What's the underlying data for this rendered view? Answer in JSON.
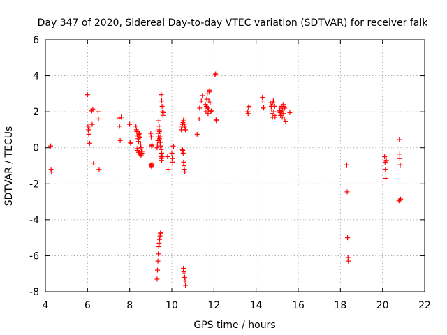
{
  "chart_data": {
    "type": "scatter",
    "title": "Day 347 of 2020, Sidereal Day-to-day VTEC variation (SDTVAR) for receiver falk",
    "xlabel": "GPS time / hours",
    "ylabel": "SDTVAR / TECUs",
    "xlim": [
      4,
      22
    ],
    "ylim": [
      -8,
      6
    ],
    "xticks": [
      "4",
      "6",
      "8",
      "10",
      "12",
      "14",
      "16",
      "18",
      "20",
      "22"
    ],
    "yticks": [
      "-8",
      "-6",
      "-4",
      "-2",
      "0",
      "2",
      "4",
      "6"
    ],
    "grid": true,
    "marker": "plus",
    "color": "#ff0000",
    "series": [
      {
        "name": "SDTVAR",
        "x": [
          4.25,
          4.27,
          4.29,
          6.0,
          6.02,
          6.04,
          6.06,
          6.08,
          6.1,
          6.2,
          6.22,
          6.25,
          6.28,
          6.5,
          6.52,
          6.55,
          7.5,
          7.52,
          7.55,
          7.6,
          8.0,
          8.02,
          8.05,
          8.3,
          8.32,
          8.34,
          8.36,
          8.38,
          8.4,
          8.42,
          8.44,
          8.46,
          8.48,
          8.5,
          8.52,
          8.54,
          8.56,
          8.58,
          8.35,
          8.38,
          8.42,
          8.46,
          8.5,
          8.55,
          8.6,
          9.0,
          9.02,
          9.04,
          9.06,
          9.0,
          9.02,
          9.04,
          9.06,
          9.3,
          9.32,
          9.34,
          9.36,
          9.38,
          9.4,
          9.42,
          9.44,
          9.46,
          9.48,
          9.5,
          9.52,
          9.54,
          9.56,
          9.58,
          9.6,
          9.38,
          9.4,
          9.42,
          9.44,
          9.46,
          9.48,
          9.5,
          9.52,
          9.54,
          9.3,
          9.32,
          9.34,
          9.36,
          9.38,
          9.4,
          9.42,
          9.44,
          9.46,
          9.48,
          9.5,
          9.52,
          9.8,
          9.82,
          10.0,
          10.02,
          10.04,
          10.06,
          10.08,
          10.45,
          10.47,
          10.49,
          10.51,
          10.53,
          10.55,
          10.57,
          10.59,
          10.61,
          10.63,
          10.65,
          10.5,
          10.52,
          10.54,
          10.56,
          10.58,
          10.6,
          10.62,
          10.55,
          10.57,
          10.59,
          10.61,
          10.63,
          10.65,
          11.2,
          11.3,
          11.32,
          11.4,
          11.45,
          11.6,
          11.62,
          11.64,
          11.66,
          11.68,
          11.7,
          11.72,
          11.74,
          11.76,
          11.78,
          11.8,
          11.82,
          11.85,
          11.88,
          12.05,
          12.08,
          12.1,
          12.12,
          13.6,
          13.62,
          13.64,
          13.66,
          14.3,
          14.32,
          14.34,
          14.36,
          14.7,
          14.72,
          14.74,
          14.76,
          14.78,
          14.8,
          14.82,
          14.84,
          14.86,
          14.88,
          14.9,
          15.1,
          15.12,
          15.14,
          15.16,
          15.18,
          15.2,
          15.22,
          15.24,
          15.26,
          15.28,
          15.3,
          15.32,
          15.34,
          15.36,
          15.4,
          15.6,
          18.3,
          18.32,
          18.34,
          18.36,
          18.38,
          20.1,
          20.12,
          20.14,
          20.16,
          20.18,
          20.8,
          20.82,
          20.84,
          20.86,
          20.78,
          20.8,
          20.82
        ],
        "y": [
          0.1,
          -1.2,
          -1.35,
          2.95,
          1.2,
          1.0,
          0.75,
          1.1,
          0.25,
          2.05,
          1.3,
          2.15,
          -0.85,
          2.0,
          1.6,
          -1.2,
          1.65,
          1.2,
          0.4,
          1.7,
          1.3,
          0.3,
          0.25,
          1.2,
          1.0,
          0.9,
          0.7,
          0.6,
          0.5,
          0.35,
          0.75,
          0.8,
          0.55,
          0.6,
          0.2,
          0.0,
          -0.2,
          -0.3,
          -0.05,
          -0.15,
          -0.25,
          -0.35,
          -0.45,
          -0.4,
          -0.2,
          0.8,
          0.6,
          0.1,
          -0.9,
          -0.95,
          -1.0,
          -1.05,
          0.15,
          -7.3,
          -6.8,
          -6.3,
          -5.9,
          -5.5,
          -5.3,
          -5.1,
          -4.9,
          -4.75,
          -4.7,
          2.95,
          2.6,
          2.3,
          2.0,
          1.8,
          1.95,
          1.5,
          1.2,
          0.9,
          0.6,
          0.3,
          0.1,
          -0.1,
          -0.3,
          -0.5,
          0.0,
          0.2,
          0.4,
          0.6,
          0.8,
          1.0,
          0.5,
          0.3,
          0.1,
          -0.5,
          -0.6,
          -0.7,
          -0.5,
          -1.2,
          -0.3,
          -0.6,
          -0.8,
          0.1,
          0.05,
          1.0,
          1.1,
          1.2,
          1.3,
          1.4,
          1.5,
          1.6,
          1.3,
          1.2,
          1.1,
          1.0,
          -0.1,
          -0.15,
          -0.3,
          -0.8,
          -1.0,
          -1.2,
          -1.35,
          -6.7,
          -6.9,
          -7.0,
          -7.2,
          -7.4,
          -7.65,
          0.75,
          1.6,
          2.2,
          2.6,
          2.9,
          2.4,
          2.0,
          2.3,
          2.7,
          3.0,
          2.2,
          1.9,
          2.1,
          2.6,
          3.1,
          3.2,
          2.5,
          2.0,
          2.05,
          4.05,
          4.1,
          1.55,
          1.5,
          2.0,
          1.9,
          2.25,
          2.3,
          2.8,
          2.6,
          2.2,
          2.25,
          2.5,
          2.3,
          2.1,
          1.9,
          1.7,
          2.5,
          2.6,
          2.0,
          1.8,
          2.3,
          1.7,
          2.1,
          2.05,
          1.95,
          1.8,
          2.2,
          2.3,
          2.0,
          1.7,
          2.1,
          2.4,
          1.9,
          2.3,
          1.6,
          2.2,
          1.45,
          1.95,
          -0.95,
          -2.45,
          -5.0,
          -6.1,
          -6.3,
          -0.5,
          -0.8,
          -1.2,
          -1.7,
          -0.7,
          0.45,
          -0.35,
          -0.95,
          -2.85,
          -2.95,
          -2.9,
          -0.6
        ]
      }
    ]
  }
}
